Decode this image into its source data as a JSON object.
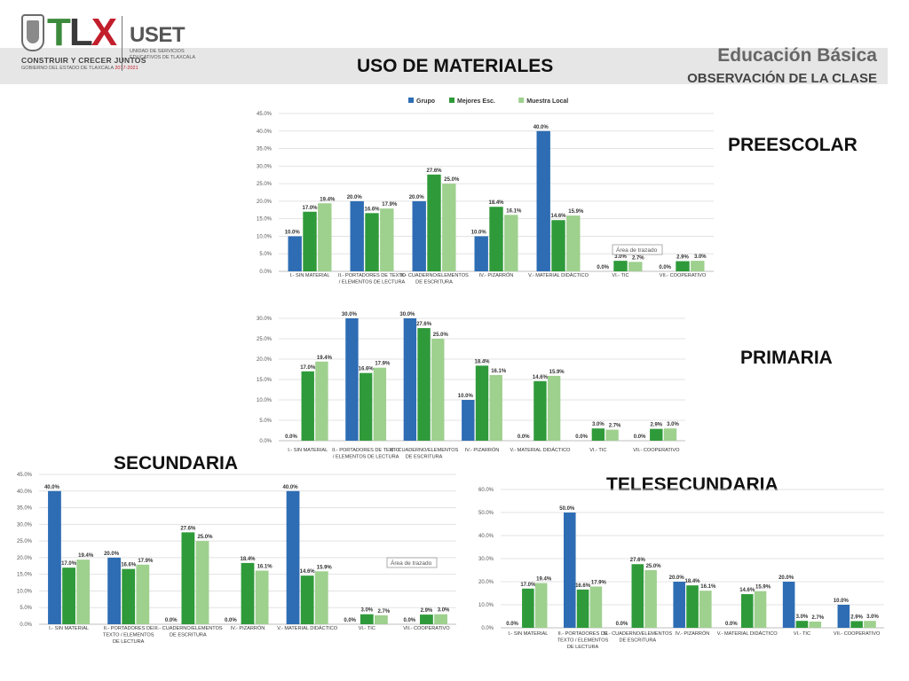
{
  "header": {
    "logo_tlx": "TLX",
    "slogan": "CONSTRUIR Y CRECER JUNTOS",
    "slogan_sub": "GOBIERNO DEL ESTADO DE TLAXCALA",
    "slogan_years": "2017-2021",
    "uset": "USET",
    "uset_sub1": "UNIDAD DE SERVICIOS",
    "uset_sub2": "EDUCATIVOS DE TLAXCALA",
    "main_title": "USO DE MATERIALES",
    "edu": "Educación Básica",
    "obs": "OBSERVACIÓN DE LA CLASE"
  },
  "labels": {
    "preescolar": "PREESCOLAR",
    "primaria": "PRIMARIA",
    "secundaria": "SECUNDARIA",
    "telesecundaria": "TELESECUNDARIA"
  },
  "colors": {
    "grupo": "#2e6db4",
    "mejores": "#2f9a3a",
    "muestra": "#9ed08e"
  },
  "chart_data": [
    {
      "type": "bar",
      "categories": [
        "I.- SIN MATERIAL",
        "II.- PORTADORES DE TEXTO / ELEMENTOS DE LECTURA",
        "III.- CUADERNO/ELEMENTOS DE ESCRITURA",
        "IV.- PIZARRÓN",
        "V.- MATERIAL DIDÁCTICO",
        "VI.- TIC",
        "VII.- COOPERATIVO"
      ],
      "series": [
        {
          "name": "Grupo",
          "values": [
            10.0,
            20.0,
            20.0,
            10.0,
            40.0,
            0.0,
            0.0
          ]
        },
        {
          "name": "Mejores Esc.",
          "values": [
            17.0,
            16.6,
            27.6,
            18.4,
            14.6,
            3.0,
            2.9
          ]
        },
        {
          "name": "Muestra Local",
          "values": [
            19.4,
            17.9,
            25.0,
            16.1,
            15.9,
            2.7,
            3.0
          ]
        }
      ],
      "ylim": [
        0,
        45
      ],
      "yticks": [
        "0.0%",
        "5.0%",
        "10.0%",
        "15.0%",
        "20.0%",
        "25.0%",
        "30.0%",
        "35.0%",
        "40.0%",
        "45.0%"
      ],
      "legend": "top",
      "annotation": "Área de trazado",
      "grid": true
    },
    {
      "type": "bar",
      "categories": [
        "I.- SIN MATERIAL",
        "II.- PORTADORES DE TEXTO / ELEMENTOS DE LECTURA",
        "III.- CUADERNO/ELEMENTOS DE ESCRITURA",
        "IV.- PIZARRÓN",
        "V.- MATERIAL DIDÁCTICO",
        "VI.- TIC",
        "VII.- COOPERATIVO"
      ],
      "series": [
        {
          "values": [
            0.0,
            30.0,
            30.0,
            10.0,
            0.0,
            0.0,
            0.0
          ]
        },
        {
          "values": [
            17.0,
            16.6,
            27.6,
            18.4,
            14.6,
            3.0,
            2.9
          ]
        },
        {
          "values": [
            19.4,
            17.9,
            25.0,
            16.1,
            15.9,
            2.7,
            3.0
          ]
        }
      ],
      "ylim": [
        0,
        30
      ],
      "yticks": [
        "0.0%",
        "5.0%",
        "10.0%",
        "15.0%",
        "20.0%",
        "25.0%",
        "30.0%"
      ],
      "grid": true
    },
    {
      "type": "bar",
      "categories": [
        "I.- SIN MATERIAL",
        "II.- PORTADORES DE TEXTO / ELEMENTOS DE LECTURA",
        "III.- CUADERNO/ELEMENTOS DE ESCRITURA",
        "IV.- PIZARRÓN",
        "V.- MATERIAL DIDÁCTICO",
        "VI.- TIC",
        "VII.- COOPERATIVO"
      ],
      "series": [
        {
          "values": [
            40.0,
            20.0,
            0.0,
            0.0,
            40.0,
            0.0,
            0.0
          ]
        },
        {
          "values": [
            17.0,
            16.6,
            27.6,
            18.4,
            14.6,
            3.0,
            2.9
          ]
        },
        {
          "values": [
            19.4,
            17.9,
            25.0,
            16.1,
            15.9,
            2.7,
            3.0
          ]
        }
      ],
      "ylim": [
        0,
        45
      ],
      "yticks": [
        "0.0%",
        "5.0%",
        "10.0%",
        "15.0%",
        "20.0%",
        "25.0%",
        "30.0%",
        "35.0%",
        "40.0%",
        "45.0%"
      ],
      "annotation": "Área de trazado",
      "grid": true
    },
    {
      "type": "bar",
      "categories": [
        "I.- SIN MATERIAL",
        "II.- PORTADORES DE TEXTO / ELEMENTOS DE LECTURA",
        "III.- CUADERNO/ELEMENTOS DE ESCRITURA",
        "IV.- PIZARRÓN",
        "V.- MATERIAL DIDÁCTICO",
        "VI.- TIC",
        "VII.- COOPERATIVO"
      ],
      "series": [
        {
          "values": [
            0.0,
            50.0,
            0.0,
            20.0,
            0.0,
            20.0,
            10.0
          ]
        },
        {
          "values": [
            17.0,
            16.6,
            27.6,
            18.4,
            14.6,
            3.0,
            2.9
          ]
        },
        {
          "values": [
            19.4,
            17.9,
            25.0,
            16.1,
            15.9,
            2.7,
            3.0
          ]
        }
      ],
      "ylim": [
        0,
        60
      ],
      "yticks": [
        "0.0%",
        "10.0%",
        "20.0%",
        "30.0%",
        "40.0%",
        "50.0%",
        "60.0%"
      ],
      "grid": true
    }
  ]
}
